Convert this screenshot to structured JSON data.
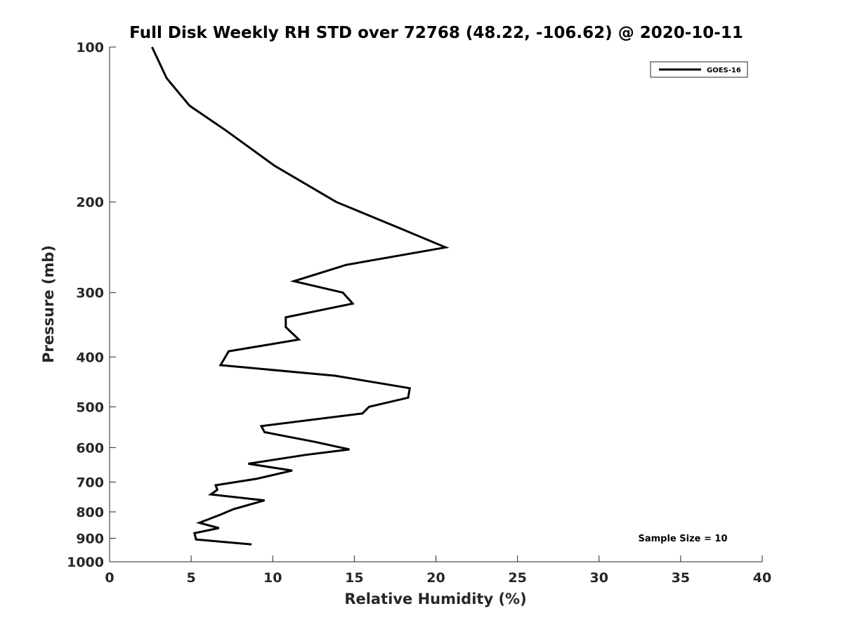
{
  "chart_data": {
    "type": "line",
    "title": "Full Disk Weekly RH STD over 72768 (48.22, -106.62) @ 2020-10-11",
    "xlabel": "Relative Humidity (%)",
    "ylabel": "Pressure (mb)",
    "xlim": [
      0,
      40
    ],
    "ylim": [
      100,
      1000
    ],
    "y_scale": "log",
    "y_reversed": true,
    "x_ticks": [
      "0",
      "5",
      "10",
      "15",
      "20",
      "25",
      "30",
      "35",
      "40"
    ],
    "y_ticks": [
      "100",
      "200",
      "300",
      "400",
      "500",
      "600",
      "700",
      "800",
      "900",
      "1000"
    ],
    "grid": false,
    "legend_position": "top-right",
    "annotation": "Sample Size = 10",
    "series": [
      {
        "name": "GOES-16",
        "color": "#000000",
        "x": [
          2.6,
          3.5,
          4.9,
          7.1,
          10.1,
          13.9,
          17.8,
          20.6,
          14.5,
          11.3,
          14.3,
          14.9,
          10.8,
          10.8,
          11.6,
          7.3,
          6.8,
          13.8,
          18.4,
          18.3,
          15.9,
          15.5,
          9.3,
          9.5,
          12.6,
          14.7,
          12.0,
          8.5,
          11.2,
          9.0,
          6.5,
          6.6,
          6.2,
          9.5,
          7.6,
          6.8,
          5.5,
          6.7,
          5.2,
          5.3,
          8.7
        ],
        "y": [
          100,
          115,
          130,
          145,
          170,
          200,
          225,
          245,
          265,
          285,
          300,
          315,
          335,
          350,
          370,
          390,
          415,
          435,
          460,
          480,
          500,
          515,
          545,
          560,
          585,
          605,
          620,
          645,
          665,
          690,
          710,
          725,
          740,
          760,
          790,
          810,
          840,
          860,
          880,
          905,
          925
        ]
      }
    ]
  }
}
